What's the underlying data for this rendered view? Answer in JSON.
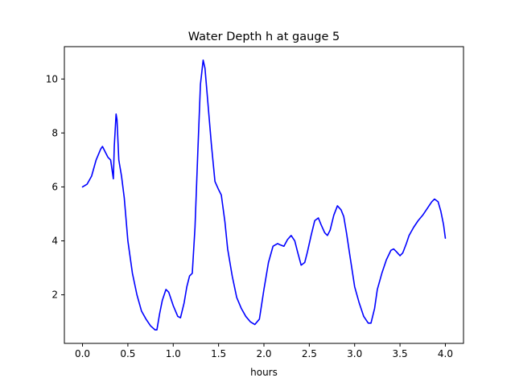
{
  "chart_data": {
    "type": "line",
    "title": "Water Depth h at gauge 5",
    "xlabel": "hours",
    "ylabel": "",
    "xlim": [
      -0.2,
      4.2
    ],
    "ylim": [
      0.2,
      11.2
    ],
    "xticks": [
      0.0,
      0.5,
      1.0,
      1.5,
      2.0,
      2.5,
      3.0,
      3.5,
      4.0
    ],
    "xtick_labels": [
      "0.0",
      "0.5",
      "1.0",
      "1.5",
      "2.0",
      "2.5",
      "3.0",
      "3.5",
      "4.0"
    ],
    "yticks": [
      2,
      4,
      6,
      8,
      10
    ],
    "ytick_labels": [
      "2",
      "4",
      "6",
      "8",
      "10"
    ],
    "grid": false,
    "series": [
      {
        "color": "#0000ff",
        "x": [
          0.0,
          0.05,
          0.1,
          0.15,
          0.2,
          0.22,
          0.25,
          0.28,
          0.31,
          0.34,
          0.35,
          0.37,
          0.38,
          0.4,
          0.43,
          0.46,
          0.5,
          0.55,
          0.6,
          0.65,
          0.7,
          0.75,
          0.8,
          0.82,
          0.85,
          0.88,
          0.92,
          0.95,
          1.0,
          1.05,
          1.08,
          1.12,
          1.15,
          1.18,
          1.21,
          1.24,
          1.27,
          1.3,
          1.33,
          1.35,
          1.38,
          1.42,
          1.46,
          1.5,
          1.53,
          1.57,
          1.6,
          1.65,
          1.7,
          1.75,
          1.8,
          1.85,
          1.9,
          1.95,
          2.0,
          2.05,
          2.1,
          2.15,
          2.18,
          2.22,
          2.26,
          2.3,
          2.34,
          2.37,
          2.41,
          2.45,
          2.48,
          2.52,
          2.56,
          2.6,
          2.63,
          2.67,
          2.7,
          2.73,
          2.77,
          2.81,
          2.85,
          2.88,
          2.91,
          2.95,
          3.0,
          3.05,
          3.1,
          3.15,
          3.18,
          3.22,
          3.25,
          3.3,
          3.35,
          3.4,
          3.43,
          3.46,
          3.5,
          3.53,
          3.57,
          3.6,
          3.65,
          3.7,
          3.75,
          3.8,
          3.85,
          3.88,
          3.92,
          3.95,
          3.98,
          4.0
        ],
        "y": [
          6.0,
          6.1,
          6.4,
          7.0,
          7.4,
          7.5,
          7.3,
          7.1,
          7.0,
          6.3,
          7.5,
          8.7,
          8.5,
          7.0,
          6.4,
          5.6,
          4.0,
          2.8,
          2.0,
          1.4,
          1.1,
          0.85,
          0.7,
          0.7,
          1.3,
          1.8,
          2.2,
          2.1,
          1.6,
          1.2,
          1.15,
          1.7,
          2.3,
          2.7,
          2.8,
          4.5,
          7.2,
          9.8,
          10.7,
          10.4,
          9.2,
          7.6,
          6.2,
          5.9,
          5.7,
          4.7,
          3.7,
          2.7,
          1.9,
          1.5,
          1.2,
          1.0,
          0.9,
          1.1,
          2.2,
          3.2,
          3.8,
          3.9,
          3.85,
          3.8,
          4.05,
          4.2,
          4.0,
          3.6,
          3.1,
          3.2,
          3.6,
          4.2,
          4.75,
          4.85,
          4.6,
          4.3,
          4.2,
          4.4,
          4.95,
          5.3,
          5.15,
          4.9,
          4.3,
          3.4,
          2.3,
          1.7,
          1.2,
          0.95,
          0.95,
          1.5,
          2.2,
          2.8,
          3.3,
          3.65,
          3.7,
          3.6,
          3.45,
          3.55,
          3.9,
          4.2,
          4.5,
          4.75,
          4.95,
          5.2,
          5.45,
          5.55,
          5.45,
          5.1,
          4.6,
          4.1
        ]
      }
    ]
  }
}
